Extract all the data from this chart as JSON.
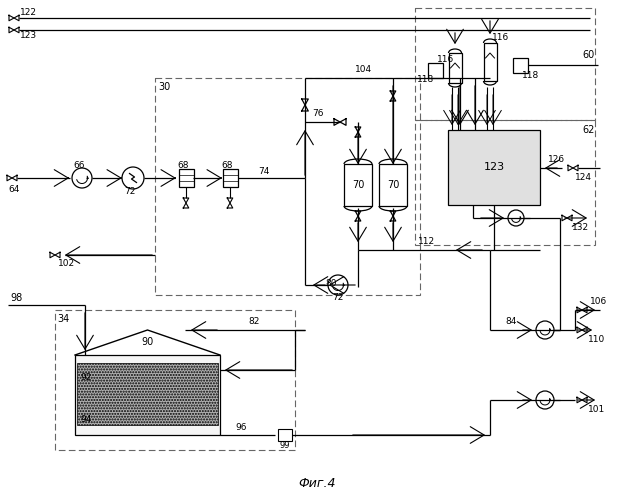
{
  "title": "Фиг.4",
  "bg_color": "#ffffff",
  "lc": "#000000",
  "dc": "#666666",
  "fig_width": 6.34,
  "fig_height": 5.0,
  "dpi": 100
}
